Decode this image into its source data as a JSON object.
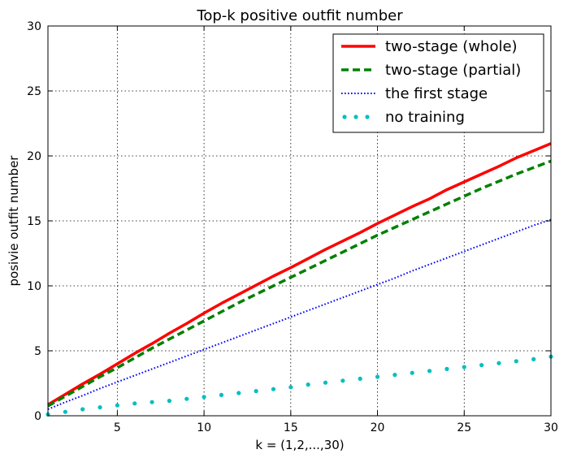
{
  "chart_data": {
    "type": "line",
    "title": "Top-k positive outfit number",
    "xlabel": "k = (1,2,...,30)",
    "ylabel": "posivie outfit number",
    "xlim": [
      1,
      30
    ],
    "ylim": [
      0,
      30
    ],
    "xticks": [
      5,
      10,
      15,
      20,
      25,
      30
    ],
    "yticks": [
      0,
      5,
      10,
      15,
      20,
      25,
      30
    ],
    "grid": true,
    "legend_position": "top-right",
    "x": [
      1,
      2,
      3,
      4,
      5,
      6,
      7,
      8,
      9,
      10,
      11,
      12,
      13,
      14,
      15,
      16,
      17,
      18,
      19,
      20,
      21,
      22,
      23,
      24,
      25,
      26,
      27,
      28,
      29,
      30
    ],
    "series": [
      {
        "name": "two-stage (whole)",
        "color": "#ff0000",
        "style": "solid",
        "values": [
          0.85,
          1.65,
          2.45,
          3.2,
          4.0,
          4.8,
          5.55,
          6.35,
          7.1,
          7.9,
          8.65,
          9.35,
          10.05,
          10.75,
          11.4,
          12.1,
          12.8,
          13.45,
          14.1,
          14.8,
          15.45,
          16.1,
          16.7,
          17.4,
          18.0,
          18.6,
          19.2,
          19.85,
          20.4,
          20.95
        ]
      },
      {
        "name": "two-stage (partial)",
        "color": "#008000",
        "style": "dashed",
        "values": [
          0.75,
          1.5,
          2.25,
          3.0,
          3.7,
          4.45,
          5.2,
          5.9,
          6.6,
          7.3,
          8.0,
          8.7,
          9.35,
          10.0,
          10.65,
          11.3,
          11.95,
          12.6,
          13.25,
          13.9,
          14.5,
          15.1,
          15.7,
          16.3,
          16.9,
          17.5,
          18.05,
          18.6,
          19.1,
          19.6
        ]
      },
      {
        "name": "the first stage",
        "color": "#0000ff",
        "style": "dotted",
        "values": [
          0.5,
          1.05,
          1.55,
          2.1,
          2.6,
          3.1,
          3.6,
          4.1,
          4.6,
          5.1,
          5.6,
          6.1,
          6.6,
          7.1,
          7.6,
          8.1,
          8.6,
          9.1,
          9.6,
          10.1,
          10.6,
          11.15,
          11.65,
          12.15,
          12.65,
          13.15,
          13.65,
          14.15,
          14.65,
          15.1
        ]
      },
      {
        "name": "no training",
        "color": "#00bfbf",
        "style": "dots",
        "values": [
          0.1,
          0.3,
          0.5,
          0.65,
          0.8,
          0.95,
          1.05,
          1.15,
          1.3,
          1.45,
          1.6,
          1.75,
          1.9,
          2.05,
          2.2,
          2.4,
          2.55,
          2.7,
          2.85,
          3.0,
          3.15,
          3.3,
          3.45,
          3.6,
          3.75,
          3.9,
          4.05,
          4.2,
          4.35,
          4.55
        ]
      }
    ]
  }
}
